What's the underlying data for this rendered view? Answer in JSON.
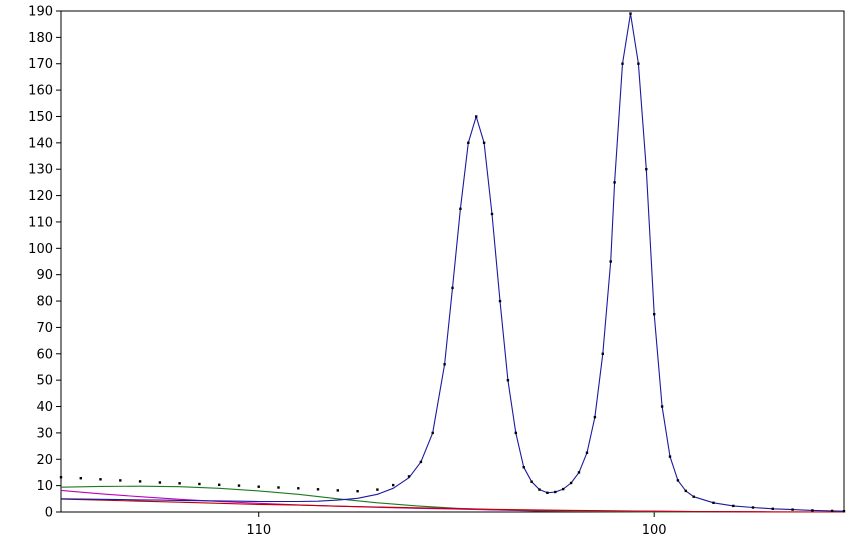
{
  "chart_data": {
    "type": "line",
    "title": "",
    "xlabel": "",
    "ylabel": "",
    "x_reversed": true,
    "xlim": [
      115.0,
      95.2
    ],
    "ylim": [
      0,
      190
    ],
    "x_ticks": [
      110,
      100
    ],
    "y_ticks": [
      0,
      10,
      20,
      30,
      40,
      50,
      60,
      70,
      80,
      90,
      100,
      110,
      120,
      130,
      140,
      150,
      160,
      170,
      180,
      190
    ],
    "grid": false,
    "legend": "none",
    "series": [
      {
        "kind": "points",
        "color": "#000000",
        "x": [
          115.0,
          114.5,
          114.0,
          113.5,
          113.0,
          112.5,
          112.0,
          111.5,
          111.0,
          110.5,
          110.0,
          109.5,
          109.0,
          108.5,
          108.0,
          107.5,
          107.0,
          106.6,
          106.2,
          105.9,
          105.6,
          105.3,
          105.1,
          104.9,
          104.7,
          104.5,
          104.3,
          104.1,
          103.9,
          103.7,
          103.5,
          103.3,
          103.1,
          102.9,
          102.7,
          102.5,
          102.3,
          102.1,
          101.9,
          101.7,
          101.5,
          101.3,
          101.1,
          101.0,
          100.8,
          100.6,
          100.4,
          100.2,
          100.0,
          99.8,
          99.6,
          99.4,
          99.2,
          99.0,
          98.5,
          98.0,
          97.5,
          97.0,
          96.5,
          96.0,
          95.5,
          95.2
        ],
        "y": [
          13.2,
          12.8,
          12.4,
          12.0,
          11.6,
          11.2,
          10.9,
          10.6,
          10.3,
          10.0,
          9.6,
          9.3,
          9.0,
          8.6,
          8.2,
          7.9,
          8.5,
          10.2,
          13.5,
          19.0,
          30.0,
          56.0,
          85.0,
          115.0,
          140.0,
          150.0,
          140.0,
          113.0,
          80.0,
          50.0,
          30.0,
          17.0,
          11.5,
          8.5,
          7.3,
          7.6,
          8.7,
          11.0,
          15.0,
          22.5,
          36.0,
          60.0,
          95.0,
          125.0,
          170.0,
          189.0,
          170.0,
          130.0,
          75.0,
          40.0,
          21.0,
          12.0,
          8.0,
          5.8,
          3.5,
          2.3,
          1.7,
          1.2,
          0.9,
          0.6,
          0.4,
          0.3
        ]
      },
      {
        "kind": "line",
        "color": "#1a1aa0",
        "x": [
          115.0,
          114.5,
          114.0,
          113.5,
          113.0,
          112.5,
          112.0,
          111.5,
          111.0,
          110.5,
          110.0,
          109.5,
          109.0,
          108.5,
          108.0,
          107.5,
          107.0,
          106.6,
          106.2,
          105.9,
          105.6,
          105.3,
          105.1,
          104.9,
          104.7,
          104.5,
          104.3,
          104.1,
          103.9,
          103.7,
          103.5,
          103.3,
          103.1,
          102.9,
          102.7,
          102.5,
          102.3,
          102.1,
          101.9,
          101.7,
          101.5,
          101.3,
          101.1,
          101.0,
          100.8,
          100.6,
          100.4,
          100.2,
          100.0,
          99.8,
          99.6,
          99.4,
          99.2,
          99.0,
          98.5,
          98.0,
          97.5,
          97.0,
          96.5,
          96.0,
          95.5,
          95.2
        ],
        "y": [
          5.0,
          4.9,
          4.8,
          4.7,
          4.6,
          4.5,
          4.4,
          4.3,
          4.2,
          4.1,
          4.0,
          4.0,
          4.0,
          4.1,
          4.5,
          5.2,
          6.7,
          9.0,
          13.0,
          19.0,
          30.0,
          56.0,
          85.0,
          115.0,
          140.0,
          150.0,
          140.0,
          113.0,
          80.0,
          50.0,
          30.0,
          17.0,
          11.5,
          8.5,
          7.3,
          7.6,
          8.7,
          11.0,
          15.0,
          22.5,
          36.0,
          60.0,
          95.0,
          125.0,
          170.0,
          189.0,
          170.0,
          130.0,
          75.0,
          40.0,
          21.0,
          12.0,
          8.0,
          5.8,
          3.5,
          2.3,
          1.7,
          1.2,
          0.9,
          0.6,
          0.4,
          0.3
        ]
      },
      {
        "kind": "line",
        "color": "#1f7a1f",
        "x": [
          115.0,
          114.0,
          113.0,
          112.0,
          111.0,
          110.0,
          109.0,
          108.0,
          107.0,
          106.0,
          105.0,
          104.0,
          103.0,
          102.0,
          101.0,
          100.0,
          99.0,
          98.0,
          97.0,
          96.0,
          95.2
        ],
        "y": [
          9.4,
          9.7,
          9.8,
          9.6,
          9.0,
          8.0,
          6.7,
          5.0,
          3.5,
          2.3,
          1.4,
          0.8,
          0.4,
          0.2,
          0.1,
          0.05,
          0.02,
          0.0,
          0.0,
          0.0,
          0.0
        ]
      },
      {
        "kind": "line",
        "color": "#c000c0",
        "x": [
          115.0,
          114.0,
          113.0,
          112.0,
          111.0,
          110.0,
          109.0,
          108.0,
          107.0,
          106.0,
          105.0,
          104.0,
          103.0,
          102.0,
          101.0,
          100.0,
          99.0,
          98.0,
          97.0,
          96.0,
          95.2
        ],
        "y": [
          8.2,
          6.9,
          5.8,
          4.8,
          4.0,
          3.3,
          2.7,
          2.2,
          1.8,
          1.4,
          1.1,
          0.8,
          0.6,
          0.5,
          0.35,
          0.25,
          0.15,
          0.1,
          0.05,
          0.02,
          0.0
        ]
      },
      {
        "kind": "line",
        "color": "#c00000",
        "x": [
          115.0,
          114.0,
          113.0,
          112.0,
          111.0,
          110.0,
          109.0,
          108.0,
          107.0,
          106.0,
          105.0,
          104.0,
          103.0,
          102.0,
          101.0,
          100.0,
          99.0,
          98.0,
          97.0,
          96.0,
          95.2
        ],
        "y": [
          4.9,
          4.5,
          4.1,
          3.7,
          3.3,
          2.9,
          2.6,
          2.2,
          1.9,
          1.6,
          1.3,
          1.0,
          0.8,
          0.6,
          0.45,
          0.3,
          0.2,
          0.1,
          0.05,
          0.0,
          0.0
        ]
      }
    ]
  }
}
